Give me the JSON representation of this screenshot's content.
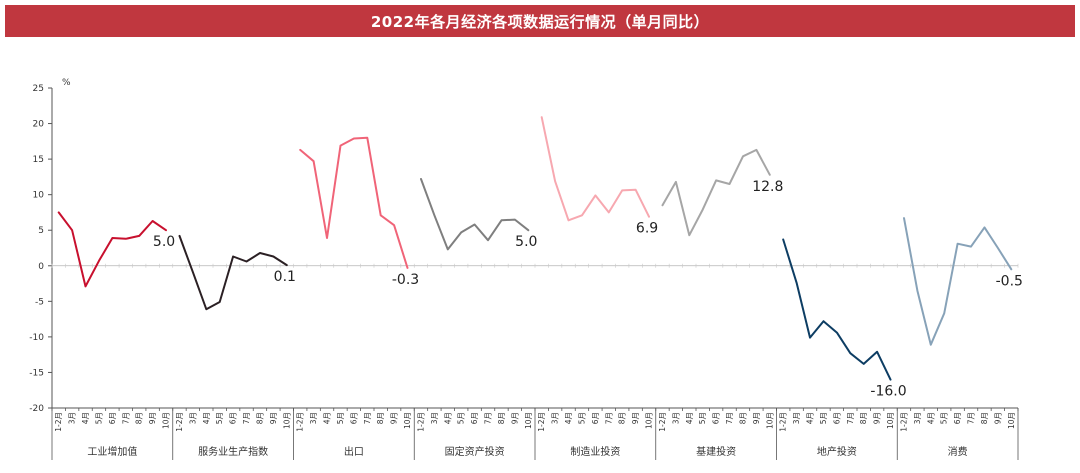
{
  "header": {
    "title": "2022年各月经济各项数据运行情况（单月同比）"
  },
  "chart_data": {
    "type": "line",
    "title": "2022年各月经济各项数据运行情况（单月同比）",
    "ylabel": "%",
    "ylim": [
      -20,
      25
    ],
    "y_ticks": [
      25,
      20,
      15,
      10,
      5,
      0,
      -5,
      -10,
      -15,
      -20
    ],
    "grid": false,
    "month_labels": [
      "1-2月",
      "3月",
      "4月",
      "5月",
      "6月",
      "7月",
      "8月",
      "9月",
      "10月"
    ],
    "series": [
      {
        "name": "工业增加值",
        "color": "#c8102e",
        "values": [
          7.5,
          5.0,
          -2.9,
          0.7,
          3.9,
          3.8,
          4.2,
          6.3,
          5.0
        ],
        "end_label": "5.0"
      },
      {
        "name": "服务业生产指数",
        "color": "#2b2024",
        "values": [
          4.2,
          -0.9,
          -6.1,
          -5.1,
          1.3,
          0.6,
          1.8,
          1.3,
          0.1
        ],
        "end_label": "0.1"
      },
      {
        "name": "出口",
        "color": "#f06478",
        "values": [
          16.3,
          14.7,
          3.9,
          16.9,
          17.9,
          18.0,
          7.1,
          5.7,
          -0.3
        ],
        "end_label": "-0.3"
      },
      {
        "name": "固定资产投资",
        "color": "#7f7f7f",
        "values": [
          12.2,
          7.1,
          2.3,
          4.7,
          5.8,
          3.6,
          6.4,
          6.5,
          5.0
        ],
        "end_label": "5.0"
      },
      {
        "name": "制造业投资",
        "color": "#f7a8b0",
        "values": [
          20.9,
          11.9,
          6.4,
          7.1,
          9.9,
          7.5,
          10.6,
          10.7,
          6.9
        ],
        "end_label": "6.9"
      },
      {
        "name": "基建投资",
        "color": "#a6a6a6",
        "values": [
          8.5,
          11.8,
          4.3,
          7.9,
          12.0,
          11.5,
          15.4,
          16.3,
          12.8
        ],
        "end_label": "12.8"
      },
      {
        "name": "地产投资",
        "color": "#0d3d63",
        "values": [
          3.7,
          -2.4,
          -10.1,
          -7.8,
          -9.4,
          -12.3,
          -13.8,
          -12.1,
          -16.0
        ],
        "end_label": "-16.0"
      },
      {
        "name": "消费",
        "color": "#87a2b8",
        "values": [
          6.7,
          -3.5,
          -11.1,
          -6.7,
          3.1,
          2.7,
          5.4,
          2.5,
          -0.5
        ],
        "end_label": "-0.5"
      }
    ]
  }
}
